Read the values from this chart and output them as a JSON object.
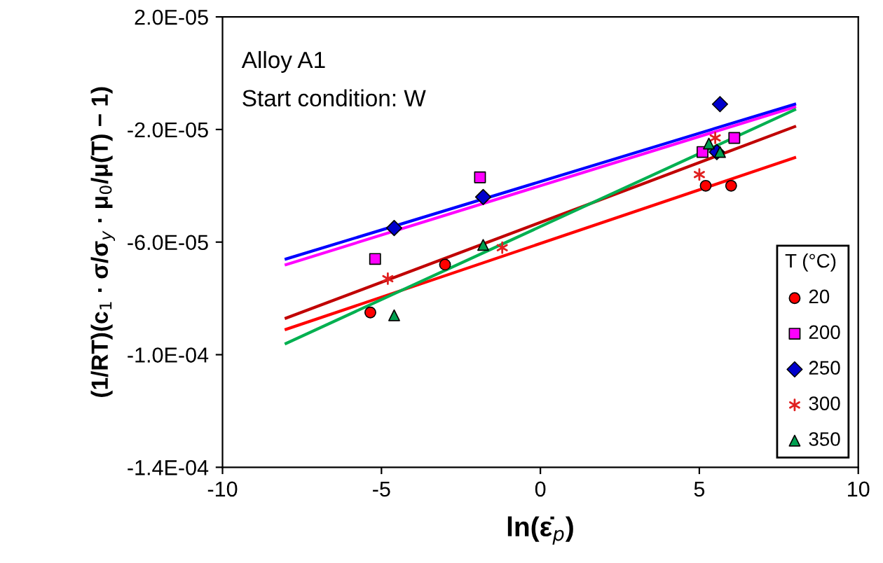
{
  "chart_data": {
    "type": "scatter",
    "xlabel": "ln(ε̇$_{p}$)",
    "ylabel": "(1/RT)(c$_{1}$ · σ/σ$_{y}$ · μ$_{0}$/μ(T) − 1)",
    "legend_title": "T (°C)",
    "annotations": [
      "Alloy A1",
      "Start condition: W"
    ],
    "xlim": [
      -10,
      10
    ],
    "xticks": [
      -10,
      -5,
      0,
      5,
      10
    ],
    "ylim": [
      -0.00014,
      2e-05
    ],
    "yticks": [
      {
        "value": 2e-05,
        "label": "2.0E-05"
      },
      {
        "value": -2e-05,
        "label": "-2.0E-05"
      },
      {
        "value": -6e-05,
        "label": "-6.0E-05"
      },
      {
        "value": -0.0001,
        "label": "-1.0E-04"
      },
      {
        "value": -0.00014,
        "label": "-1.4E-04"
      }
    ],
    "grid": false,
    "legend": "bottom right",
    "series": [
      {
        "name": "20",
        "marker": "circle",
        "color": "#ff0000",
        "x": [
          -5.35,
          -3.0,
          5.2,
          6.0
        ],
        "values": [
          -8.5e-05,
          -6.8e-05,
          -4e-05,
          -4e-05
        ]
      },
      {
        "name": "200",
        "marker": "square",
        "color": "#ff00ff",
        "x": [
          -5.2,
          -1.9,
          5.1,
          6.1
        ],
        "values": [
          -6.6e-05,
          -3.7e-05,
          -2.8e-05,
          -2.3e-05
        ]
      },
      {
        "name": "250",
        "marker": "diamond",
        "color": "#0000cc",
        "x": [
          -4.6,
          -1.8,
          5.55,
          5.65
        ],
        "values": [
          -5.5e-05,
          -4.4e-05,
          -2.8e-05,
          -1.1e-05
        ]
      },
      {
        "name": "300",
        "marker": "cross",
        "color": "#e02020",
        "x": [
          -4.8,
          -1.2,
          5.0,
          5.5
        ],
        "values": [
          -7.3e-05,
          -6.2e-05,
          -3.6e-05,
          -2.3e-05
        ]
      },
      {
        "name": "350",
        "marker": "triangle",
        "color": "#00a050",
        "x": [
          -4.6,
          -1.8,
          5.3,
          5.65
        ],
        "values": [
          -8.6e-05,
          -6.1e-05,
          -2.5e-05,
          -2.8e-05
        ]
      },
      {
        "type": "line",
        "color": "#ff0000",
        "x": [
          -8,
          8
        ],
        "values": [
          -9.1e-05,
          -3e-05
        ]
      },
      {
        "type": "line",
        "color": "#ff00ff",
        "x": [
          -8,
          8
        ],
        "values": [
          -6.8e-05,
          -1.2e-05
        ]
      },
      {
        "type": "line",
        "color": "#0000ff",
        "x": [
          -8,
          8
        ],
        "values": [
          -6.6e-05,
          -1.1e-05
        ]
      },
      {
        "type": "line",
        "color": "#c00000",
        "x": [
          -8,
          8
        ],
        "values": [
          -8.7e-05,
          -1.9e-05
        ]
      },
      {
        "type": "line",
        "color": "#00b050",
        "x": [
          -8,
          8
        ],
        "values": [
          -9.6e-05,
          -1.3e-05
        ]
      }
    ]
  }
}
